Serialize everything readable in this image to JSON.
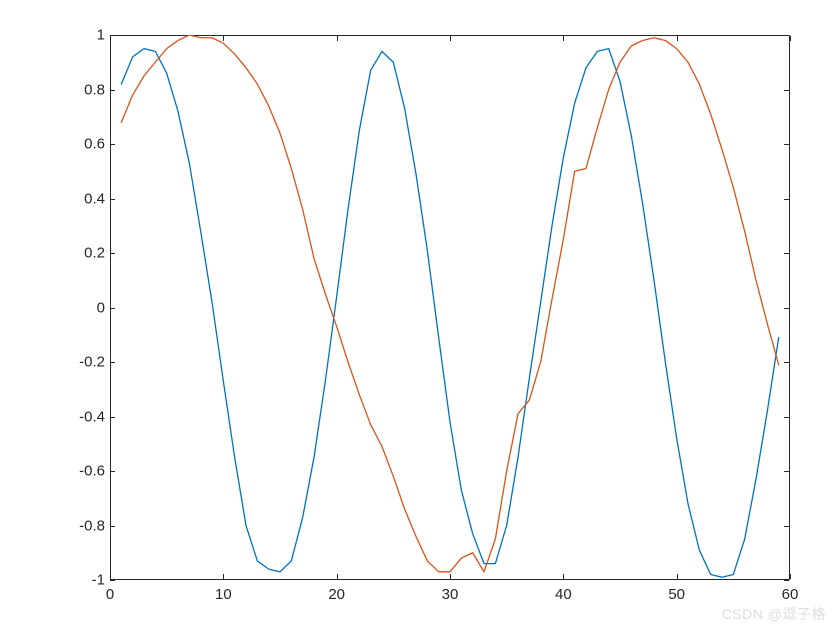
{
  "chart": {
    "type": "line",
    "background_color": "#ffffff",
    "axis_color": "#262626",
    "tick_fontsize": 15,
    "xlim": [
      0,
      60
    ],
    "ylim": [
      -1,
      1
    ],
    "xticks": [
      0,
      10,
      20,
      30,
      40,
      50,
      60
    ],
    "yticks": [
      -1,
      -0.8,
      -0.6,
      -0.4,
      -0.2,
      0,
      0.2,
      0.4,
      0.6,
      0.8,
      1
    ],
    "ytick_labels": [
      "-1",
      "-0.8",
      "-0.6",
      "-0.4",
      "-0.2",
      "0",
      "0.2",
      "0.4",
      "0.6",
      "0.8",
      "1"
    ],
    "xtick_labels": [
      "0",
      "10",
      "20",
      "30",
      "40",
      "50",
      "60"
    ],
    "line_width": 1.3,
    "series": [
      {
        "color": "#0072bd",
        "x": [
          1,
          2,
          3,
          4,
          5,
          6,
          7,
          8,
          9,
          10,
          11,
          12,
          13,
          14,
          15,
          16,
          17,
          18,
          19,
          20,
          21,
          22,
          23,
          24,
          25,
          26,
          27,
          28,
          29,
          30,
          31,
          32,
          33,
          34,
          35,
          36,
          37,
          38,
          39,
          40,
          41,
          42,
          43,
          44,
          45,
          46,
          47,
          48,
          49,
          50,
          51,
          52,
          53,
          54,
          55,
          56,
          57,
          58,
          59
        ],
        "y": [
          0.82,
          0.92,
          0.95,
          0.94,
          0.86,
          0.72,
          0.53,
          0.28,
          0.02,
          -0.27,
          -0.55,
          -0.8,
          -0.93,
          -0.96,
          -0.97,
          -0.93,
          -0.77,
          -0.55,
          -0.27,
          0.04,
          0.36,
          0.65,
          0.87,
          0.94,
          0.9,
          0.73,
          0.49,
          0.21,
          -0.11,
          -0.42,
          -0.67,
          -0.83,
          -0.94,
          -0.94,
          -0.8,
          -0.55,
          -0.26,
          0.02,
          0.3,
          0.55,
          0.75,
          0.88,
          0.94,
          0.95,
          0.83,
          0.63,
          0.38,
          0.1,
          -0.2,
          -0.48,
          -0.72,
          -0.89,
          -0.98,
          -0.99,
          -0.98,
          -0.85,
          -0.63,
          -0.38,
          -0.11
        ]
      },
      {
        "color": "#d95319",
        "x": [
          1,
          2,
          3,
          4,
          5,
          6,
          7,
          8,
          9,
          10,
          11,
          12,
          13,
          14,
          15,
          16,
          17,
          18,
          19,
          20,
          21,
          22,
          23,
          24,
          25,
          26,
          27,
          28,
          29,
          30,
          31,
          32,
          33,
          34,
          35,
          36,
          37,
          38,
          39,
          40,
          41,
          42,
          43,
          44,
          45,
          46,
          47,
          48,
          49,
          50,
          51,
          52,
          53,
          54,
          55,
          56,
          57,
          58,
          59
        ],
        "y": [
          0.68,
          0.78,
          0.85,
          0.9,
          0.95,
          0.98,
          1.0,
          0.99,
          0.99,
          0.97,
          0.93,
          0.88,
          0.82,
          0.74,
          0.64,
          0.51,
          0.36,
          0.18,
          0.05,
          -0.07,
          -0.2,
          -0.32,
          -0.43,
          -0.51,
          -0.62,
          -0.74,
          -0.84,
          -0.93,
          -0.97,
          -0.97,
          -0.92,
          -0.9,
          -0.97,
          -0.85,
          -0.6,
          -0.39,
          -0.34,
          -0.2,
          0.03,
          0.25,
          0.5,
          0.51,
          0.66,
          0.8,
          0.9,
          0.96,
          0.98,
          0.99,
          0.98,
          0.95,
          0.9,
          0.82,
          0.71,
          0.58,
          0.44,
          0.28,
          0.1,
          -0.06,
          -0.21
        ]
      }
    ]
  },
  "watermark": "CSDN @逗子格"
}
